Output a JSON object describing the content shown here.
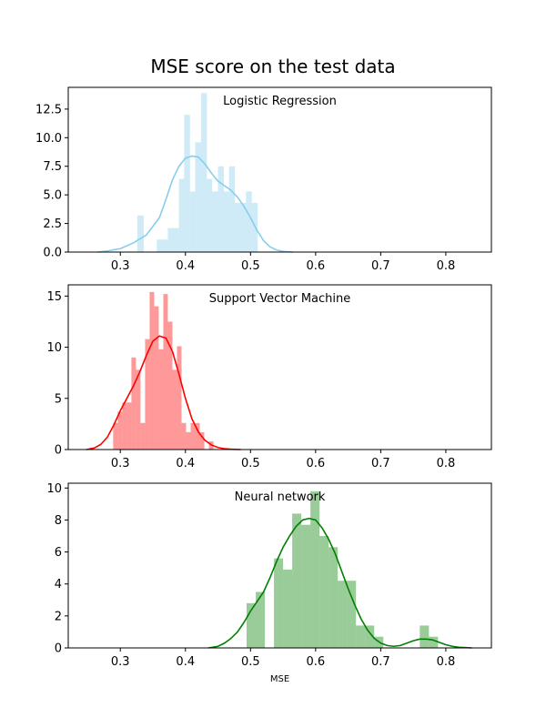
{
  "chart_data": {
    "type": "histogram",
    "title": "MSE score on the test data",
    "xlabel": "MSE",
    "xlim": [
      0.22,
      0.87
    ],
    "xticks": [
      0.3,
      0.4,
      0.5,
      0.6,
      0.7,
      0.8
    ],
    "grid": false,
    "panels": [
      {
        "label": "Logistic Regression",
        "color": "#87ceeb",
        "ylim": [
          0,
          14.4
        ],
        "yticks": [
          0.0,
          2.5,
          5.0,
          7.5,
          10.0,
          12.5
        ],
        "bins": [
          {
            "x0": 0.326,
            "x1": 0.336,
            "y": 3.2
          },
          {
            "x0": 0.356,
            "x1": 0.373,
            "y": 1.1
          },
          {
            "x0": 0.373,
            "x1": 0.39,
            "y": 2.1
          },
          {
            "x0": 0.39,
            "x1": 0.398,
            "y": 6.4
          },
          {
            "x0": 0.398,
            "x1": 0.407,
            "y": 12.0
          },
          {
            "x0": 0.407,
            "x1": 0.415,
            "y": 5.3
          },
          {
            "x0": 0.415,
            "x1": 0.424,
            "y": 9.6
          },
          {
            "x0": 0.424,
            "x1": 0.433,
            "y": 13.9
          },
          {
            "x0": 0.433,
            "x1": 0.441,
            "y": 6.4
          },
          {
            "x0": 0.441,
            "x1": 0.45,
            "y": 5.3
          },
          {
            "x0": 0.45,
            "x1": 0.459,
            "y": 7.5
          },
          {
            "x0": 0.459,
            "x1": 0.467,
            "y": 5.3
          },
          {
            "x0": 0.467,
            "x1": 0.476,
            "y": 7.5
          },
          {
            "x0": 0.476,
            "x1": 0.493,
            "y": 4.3
          },
          {
            "x0": 0.493,
            "x1": 0.502,
            "y": 5.3
          },
          {
            "x0": 0.502,
            "x1": 0.511,
            "y": 4.3
          }
        ],
        "kde": {
          "x": [
            0.265,
            0.28,
            0.3,
            0.32,
            0.34,
            0.36,
            0.37,
            0.38,
            0.39,
            0.4,
            0.41,
            0.42,
            0.43,
            0.44,
            0.45,
            0.46,
            0.47,
            0.48,
            0.49,
            0.5,
            0.51,
            0.52,
            0.53,
            0.54,
            0.55,
            0.565
          ],
          "y": [
            0.0,
            0.1,
            0.3,
            0.8,
            1.5,
            3.0,
            4.6,
            6.3,
            7.5,
            8.2,
            8.4,
            8.3,
            7.7,
            6.9,
            6.2,
            5.8,
            5.4,
            4.8,
            4.0,
            3.0,
            1.9,
            1.0,
            0.45,
            0.18,
            0.06,
            0.0
          ]
        }
      },
      {
        "label": "Support Vector Machine",
        "color": "#ff0000",
        "ylim": [
          0,
          16.1
        ],
        "yticks": [
          0,
          5,
          10,
          15
        ],
        "bins": [
          {
            "x0": 0.289,
            "x1": 0.296,
            "y": 2.6
          },
          {
            "x0": 0.296,
            "x1": 0.303,
            "y": 3.7
          },
          {
            "x0": 0.303,
            "x1": 0.31,
            "y": 4.6
          },
          {
            "x0": 0.31,
            "x1": 0.317,
            "y": 4.6
          },
          {
            "x0": 0.317,
            "x1": 0.324,
            "y": 9.0
          },
          {
            "x0": 0.324,
            "x1": 0.331,
            "y": 7.8
          },
          {
            "x0": 0.331,
            "x1": 0.338,
            "y": 2.6
          },
          {
            "x0": 0.338,
            "x1": 0.345,
            "y": 10.8
          },
          {
            "x0": 0.345,
            "x1": 0.352,
            "y": 15.4
          },
          {
            "x0": 0.352,
            "x1": 0.359,
            "y": 14.0
          },
          {
            "x0": 0.359,
            "x1": 0.366,
            "y": 9.8
          },
          {
            "x0": 0.366,
            "x1": 0.373,
            "y": 15.2
          },
          {
            "x0": 0.373,
            "x1": 0.38,
            "y": 12.5
          },
          {
            "x0": 0.38,
            "x1": 0.387,
            "y": 7.8
          },
          {
            "x0": 0.387,
            "x1": 0.394,
            "y": 10.1
          },
          {
            "x0": 0.394,
            "x1": 0.401,
            "y": 2.6
          },
          {
            "x0": 0.401,
            "x1": 0.408,
            "y": 1.7
          },
          {
            "x0": 0.408,
            "x1": 0.415,
            "y": 2.6
          },
          {
            "x0": 0.415,
            "x1": 0.422,
            "y": 2.6
          },
          {
            "x0": 0.422,
            "x1": 0.429,
            "y": 1.7
          },
          {
            "x0": 0.436,
            "x1": 0.443,
            "y": 0.8
          }
        ],
        "kde": {
          "x": [
            0.248,
            0.26,
            0.27,
            0.28,
            0.29,
            0.3,
            0.31,
            0.32,
            0.33,
            0.34,
            0.35,
            0.36,
            0.37,
            0.38,
            0.39,
            0.4,
            0.41,
            0.42,
            0.43,
            0.44,
            0.45,
            0.46,
            0.47,
            0.485
          ],
          "y": [
            0.0,
            0.15,
            0.5,
            1.2,
            2.4,
            3.8,
            5.0,
            6.2,
            7.6,
            9.2,
            10.6,
            11.1,
            10.9,
            9.6,
            7.4,
            5.0,
            3.0,
            1.7,
            0.9,
            0.45,
            0.2,
            0.08,
            0.03,
            0.0
          ]
        }
      },
      {
        "label": "Neural network",
        "color": "#008000",
        "ylim": [
          0,
          10.3
        ],
        "yticks": [
          0,
          2,
          4,
          6,
          8,
          10
        ],
        "bins": [
          {
            "x0": 0.494,
            "x1": 0.508,
            "y": 2.8
          },
          {
            "x0": 0.508,
            "x1": 0.522,
            "y": 3.5
          },
          {
            "x0": 0.536,
            "x1": 0.55,
            "y": 5.6
          },
          {
            "x0": 0.55,
            "x1": 0.564,
            "y": 4.9
          },
          {
            "x0": 0.564,
            "x1": 0.578,
            "y": 8.4
          },
          {
            "x0": 0.578,
            "x1": 0.592,
            "y": 7.7
          },
          {
            "x0": 0.592,
            "x1": 0.606,
            "y": 9.8
          },
          {
            "x0": 0.606,
            "x1": 0.62,
            "y": 7.0
          },
          {
            "x0": 0.62,
            "x1": 0.634,
            "y": 6.3
          },
          {
            "x0": 0.634,
            "x1": 0.648,
            "y": 4.2
          },
          {
            "x0": 0.648,
            "x1": 0.662,
            "y": 4.2
          },
          {
            "x0": 0.662,
            "x1": 0.676,
            "y": 1.4
          },
          {
            "x0": 0.676,
            "x1": 0.69,
            "y": 1.4
          },
          {
            "x0": 0.69,
            "x1": 0.704,
            "y": 0.7
          },
          {
            "x0": 0.76,
            "x1": 0.774,
            "y": 1.4
          },
          {
            "x0": 0.774,
            "x1": 0.788,
            "y": 0.7
          }
        ],
        "kde": {
          "x": [
            0.435,
            0.45,
            0.46,
            0.47,
            0.48,
            0.49,
            0.5,
            0.51,
            0.52,
            0.53,
            0.54,
            0.55,
            0.56,
            0.57,
            0.58,
            0.59,
            0.6,
            0.61,
            0.62,
            0.63,
            0.64,
            0.65,
            0.66,
            0.67,
            0.68,
            0.69,
            0.7,
            0.71,
            0.72,
            0.73,
            0.74,
            0.75,
            0.76,
            0.77,
            0.78,
            0.79,
            0.8,
            0.81,
            0.82,
            0.84
          ],
          "y": [
            0.0,
            0.1,
            0.3,
            0.6,
            1.0,
            1.6,
            2.3,
            2.9,
            3.5,
            4.4,
            5.4,
            6.3,
            7.0,
            7.6,
            8.0,
            8.1,
            8.0,
            7.5,
            6.8,
            5.9,
            4.8,
            3.7,
            2.7,
            1.8,
            1.1,
            0.6,
            0.3,
            0.15,
            0.1,
            0.15,
            0.3,
            0.45,
            0.55,
            0.55,
            0.5,
            0.35,
            0.2,
            0.1,
            0.04,
            0.0
          ]
        }
      }
    ]
  }
}
